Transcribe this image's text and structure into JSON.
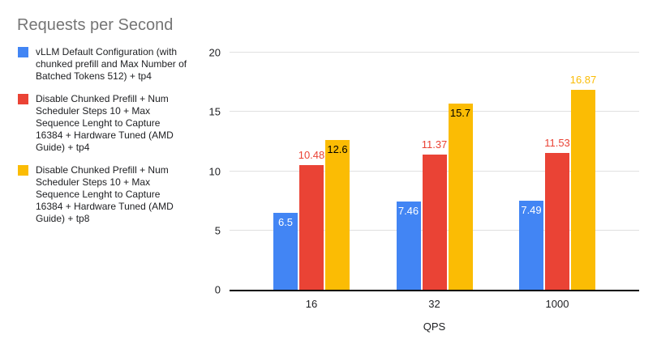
{
  "title": "Requests per Second",
  "colors": {
    "background": "#ffffff",
    "title_text": "#757575",
    "legend_text": "#202124",
    "axis_text": "#202124",
    "gridline": "#e0e0e0",
    "axis_line": "#000000",
    "series_blue": "#4285F4",
    "series_red": "#EA4335",
    "series_yellow": "#FBBC04"
  },
  "chart_data": {
    "type": "bar",
    "title": "Requests per Second",
    "xlabel": "QPS",
    "ylabel": "",
    "categories": [
      "16",
      "32",
      "1000"
    ],
    "ylim": [
      0,
      20
    ],
    "y_ticks": [
      0,
      5,
      10,
      15,
      20
    ],
    "grid": true,
    "legend_position": "left",
    "series": [
      {
        "name": "vLLM Default Configuration (with chunked prefill and Max Number of Batched Tokens 512) + tp4",
        "color": "#4285F4",
        "values": [
          6.5,
          7.46,
          7.49
        ],
        "data_labels": [
          {
            "text": "6.5",
            "placement": "inside",
            "color": "#ffffff"
          },
          {
            "text": "7.46",
            "placement": "inside",
            "color": "#ffffff"
          },
          {
            "text": "7.49",
            "placement": "inside",
            "color": "#ffffff"
          }
        ]
      },
      {
        "name": "Disable Chunked Prefill + Num Scheduler Steps 10 + Max Sequence Lenght to Capture 16384 + Hardware Tuned (AMD Guide) + tp4",
        "color": "#EA4335",
        "values": [
          10.48,
          11.37,
          11.53
        ],
        "data_labels": [
          {
            "text": "10.48",
            "placement": "above",
            "color": "#EA4335"
          },
          {
            "text": "11.37",
            "placement": "above",
            "color": "#EA4335"
          },
          {
            "text": "11.53",
            "placement": "above",
            "color": "#EA4335"
          }
        ]
      },
      {
        "name": "Disable Chunked Prefill + Num Scheduler Steps 10 + Max Sequence Lenght to Capture 16384 + Hardware Tuned (AMD Guide) + tp8",
        "color": "#FBBC04",
        "values": [
          12.6,
          15.7,
          16.87
        ],
        "data_labels": [
          {
            "text": "12.6",
            "placement": "inside",
            "color": "#000000"
          },
          {
            "text": "15.7",
            "placement": "inside",
            "color": "#000000"
          },
          {
            "text": "16.87",
            "placement": "above",
            "color": "#FBBC04"
          }
        ]
      }
    ]
  }
}
